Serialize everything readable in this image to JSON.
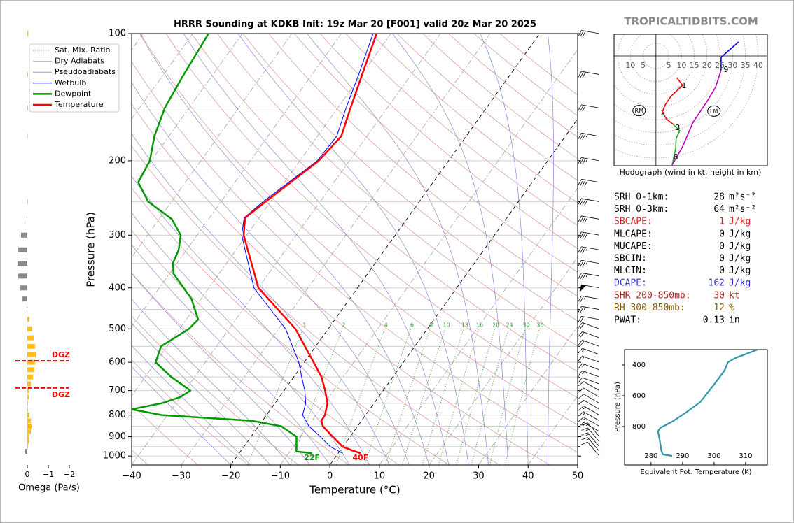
{
  "header": {
    "site": "TROPICALTIDBITS.COM"
  },
  "chart_data": [
    {
      "type": "skew-t",
      "title": "HRRR Sounding at KDKB Init: 19z Mar 20 [F001] valid 20z Mar 20 2025",
      "xlabel": "Temperature (°C)",
      "ylabel": "Pressure (hPa)",
      "xlim": [
        -40,
        50
      ],
      "ylim": [
        1050,
        100
      ],
      "log_y": true,
      "grid": true,
      "xticks": [
        {
          "value": -40,
          "label": "−40"
        },
        {
          "value": -30,
          "label": "−30"
        },
        {
          "value": -20,
          "label": "−20"
        },
        {
          "value": -10,
          "label": "−10"
        },
        0,
        10,
        20,
        30,
        40,
        50
      ],
      "yticks": [
        100,
        200,
        300,
        400,
        500,
        600,
        700,
        800,
        900,
        1000
      ],
      "yminor": [
        150,
        250,
        350,
        450,
        550,
        650,
        750,
        850,
        950
      ],
      "highlight_isotherms": [
        -20,
        0
      ],
      "legend": "upper left",
      "background_lines": [
        {
          "name": "Sat. Mix. Ratio",
          "color": "#2e9e2e"
        },
        {
          "name": "Dry Adiabats",
          "color": "#e09090"
        },
        {
          "name": "Pseudoadiabats",
          "color": "#8a8ad8"
        }
      ],
      "mixing_ratios": [
        1,
        2,
        4,
        6,
        8,
        10,
        13,
        16,
        20,
        24,
        30,
        36
      ],
      "series": [
        {
          "name": "Wetbulb",
          "color": "#0000ff",
          "pressure": [
            985,
            950,
            900,
            850,
            800,
            750,
            700,
            650,
            600,
            500,
            400,
            300,
            273,
            250,
            200,
            175,
            150,
            125,
            100
          ],
          "values": [
            0.9,
            -2.6,
            -6.0,
            -9.8,
            -12.7,
            -13.8,
            -15.8,
            -18.4,
            -21.1,
            -28.6,
            -40.9,
            -51.0,
            -53.0,
            -51.5,
            -46.5,
            -46.1,
            -48.3,
            -50.6,
            -53.6
          ]
        },
        {
          "name": "Dewpoint",
          "color": "#009900",
          "surface_label": "22F",
          "pressure": [
            985,
            975,
            900,
            850,
            825,
            800,
            775,
            750,
            725,
            700,
            650,
            600,
            550,
            500,
            475,
            425,
            370,
            350,
            325,
            300,
            275,
            250,
            225,
            200,
            175,
            150,
            125,
            100
          ],
          "values": [
            -5.3,
            -8.7,
            -10.8,
            -15.4,
            -22.2,
            -41.1,
            -48.1,
            -42.8,
            -40.0,
            -38.9,
            -44.7,
            -50.0,
            -51.2,
            -48.1,
            -47.6,
            -51.9,
            -59.2,
            -60.8,
            -61.6,
            -63.3,
            -67.4,
            -74.7,
            -79.5,
            -80.3,
            -82.9,
            -84.9,
            -85.9,
            -86.8
          ]
        },
        {
          "name": "Temperature",
          "color": "#ff0000",
          "surface_label": "40F",
          "pressure": [
            985,
            970,
            950,
            900,
            850,
            825,
            800,
            750,
            700,
            650,
            600,
            500,
            400,
            300,
            273,
            250,
            200,
            175,
            150,
            125,
            100
          ],
          "values": [
            4.5,
            2.4,
            -0.1,
            -3.5,
            -7.0,
            -8.1,
            -8.2,
            -9.4,
            -11.7,
            -14.4,
            -18.1,
            -26.6,
            -40.0,
            -50.6,
            -52.8,
            -51.0,
            -46.2,
            -45.2,
            -47.4,
            -49.9,
            -52.9
          ]
        }
      ],
      "wind": {
        "pressure": [
          1000,
          975,
          950,
          925,
          900,
          875,
          850,
          825,
          800,
          775,
          750,
          725,
          700,
          675,
          650,
          625,
          600,
          575,
          550,
          525,
          500,
          475,
          450,
          425,
          400,
          375,
          350,
          325,
          300,
          275,
          250,
          225,
          200,
          175,
          150,
          125,
          100
        ],
        "speed": [
          10,
          15,
          15,
          15,
          15,
          15,
          15,
          15,
          15,
          10,
          10,
          10,
          10,
          10,
          15,
          15,
          15,
          15,
          20,
          20,
          20,
          20,
          25,
          25,
          50,
          35,
          35,
          35,
          40,
          40,
          40,
          40,
          35,
          35,
          30,
          30,
          30
        ],
        "direction": [
          320,
          320,
          320,
          320,
          320,
          300,
          300,
          300,
          300,
          300,
          300,
          300,
          300,
          290,
          290,
          290,
          290,
          290,
          290,
          290,
          290,
          280,
          280,
          280,
          280,
          280,
          280,
          280,
          280,
          280,
          280,
          280,
          280,
          280,
          280,
          280,
          280
        ]
      }
    },
    {
      "type": "bar",
      "xlabel": "Omega (Pa/s)",
      "xlim": [
        0.5,
        -2.2
      ],
      "ylim": [
        1050,
        100
      ],
      "log_y": true,
      "xticks": [
        0,
        {
          "value": -1,
          "label": "−1"
        },
        {
          "value": -2,
          "label": "−2"
        }
      ],
      "pressure": [
        100,
        125,
        150,
        175,
        250,
        275,
        300,
        325,
        350,
        375,
        400,
        425,
        450,
        475,
        500,
        525,
        550,
        575,
        600,
        625,
        650,
        675,
        700,
        725,
        750,
        775,
        800,
        825,
        850,
        875,
        900,
        925,
        950,
        975
      ],
      "values": [
        -0.05,
        -0.03,
        -0.03,
        -0.02,
        -0.03,
        0.02,
        0.3,
        0.43,
        0.47,
        0.43,
        0.33,
        0.23,
        0.03,
        -0.1,
        -0.23,
        -0.3,
        -0.37,
        -0.4,
        -0.37,
        -0.33,
        -0.27,
        -0.17,
        -0.1,
        -0.07,
        -0.03,
        -0.03,
        -0.1,
        -0.17,
        -0.2,
        -0.17,
        -0.1,
        -0.07,
        -0.03,
        0.1
      ],
      "positive_color": "#888888",
      "negative_color": "#ffbf1a",
      "dgz": {
        "pressure": [
          595,
          690
        ],
        "labels": [
          "DGZ",
          "DGZ"
        ],
        "color": "#ff0000"
      }
    },
    {
      "type": "hodograph",
      "caption": "Hodograph (wind in kt, height in km)",
      "xlim": [
        -16.4,
        43.6
      ],
      "ylim": [
        -43,
        8.5
      ],
      "ring_labels_left": [
        10,
        5
      ],
      "rings": [
        5,
        10,
        15,
        20,
        25,
        30,
        35,
        40
      ],
      "segments": [
        {
          "color": "#ff0000",
          "u": [
            8.2,
            10.4,
            5.8,
            3.6,
            2.5,
            4.1,
            6.8
          ],
          "v": [
            -8.5,
            -11.5,
            -15.9,
            -19.2,
            -21.9,
            -24.7,
            -26.8
          ]
        },
        {
          "color": "#22aa22",
          "u": [
            6.8,
            9.3,
            7.9,
            7.7,
            6.8,
            6.3
          ],
          "v": [
            -26.8,
            -29.3,
            -32.3,
            -36.2,
            -40.5,
            -42.7
          ]
        },
        {
          "color": "#bb00bb",
          "u": [
            6.3,
            10.4,
            14.5,
            20.0,
            23.3,
            25.5
          ],
          "v": [
            -42.7,
            -35.6,
            -26.0,
            -17.8,
            -12.3,
            -5.5
          ]
        },
        {
          "color": "#0000ff",
          "u": [
            25.5,
            25.5,
            32.3
          ],
          "v": [
            -5.5,
            -0.5,
            5.5
          ]
        }
      ],
      "height_labels": {
        "labels": [
          1,
          2,
          3,
          6,
          9
        ],
        "u": [
          11.0,
          2.7,
          8.5,
          7.7,
          27.4
        ],
        "v": [
          -11.8,
          -22.5,
          -28.2,
          -39.7,
          -5.5
        ]
      },
      "storm_motion": {
        "labels": [
          "RM",
          "LM"
        ],
        "u": [
          -6.6,
          22.7
        ],
        "v": [
          -21.4,
          -21.6
        ]
      }
    },
    {
      "type": "line",
      "xlabel": "Equivalent Pot. Temperature (K)",
      "ylabel": "Pressure (hPa)",
      "xlim": [
        271.6,
        316.9
      ],
      "ylim": [
        1050,
        300
      ],
      "xticks": [
        280,
        290,
        300,
        310
      ],
      "yticks": [
        400,
        600,
        800
      ],
      "color": "#3396a8",
      "y": [
        300,
        355,
        382,
        436,
        527,
        641,
        709,
        768,
        809,
        832,
        882,
        959,
        982,
        991
      ],
      "values": [
        313.8,
        306.7,
        304.4,
        303.3,
        300.0,
        295.6,
        291.1,
        286.7,
        282.9,
        282.2,
        282.7,
        283.3,
        283.8,
        286.7
      ]
    }
  ],
  "indices": [
    {
      "label": "SRH 0-1km:",
      "value": 28,
      "unit": "m²s⁻²",
      "color": "#000000"
    },
    {
      "label": "SRH 0-3km:",
      "value": 64,
      "unit": "m²s⁻²",
      "color": "#000000"
    },
    {
      "label": "SBCAPE:",
      "value": 1,
      "unit": "J/kg",
      "color": "#e02020"
    },
    {
      "label": "MLCAPE:",
      "value": 0,
      "unit": "J/kg",
      "color": "#000000"
    },
    {
      "label": "MUCAPE:",
      "value": 0,
      "unit": "J/kg",
      "color": "#000000"
    },
    {
      "label": "SBCIN:",
      "value": 0,
      "unit": "J/kg",
      "color": "#000000"
    },
    {
      "label": "MLCIN:",
      "value": 0,
      "unit": "J/kg",
      "color": "#000000"
    },
    {
      "label": "DCAPE:",
      "value": 162,
      "unit": "J/kg",
      "color": "#3030d0"
    },
    {
      "label": "SHR 200-850mb:",
      "value": 30,
      "unit": "kt",
      "color": "#b22222"
    },
    {
      "label": "RH 300-850mb:",
      "value": 12,
      "unit": "%",
      "color": "#8b5a00"
    },
    {
      "label": "PWAT:",
      "value": 0.13,
      "unit": "in",
      "color": "#000000"
    }
  ]
}
